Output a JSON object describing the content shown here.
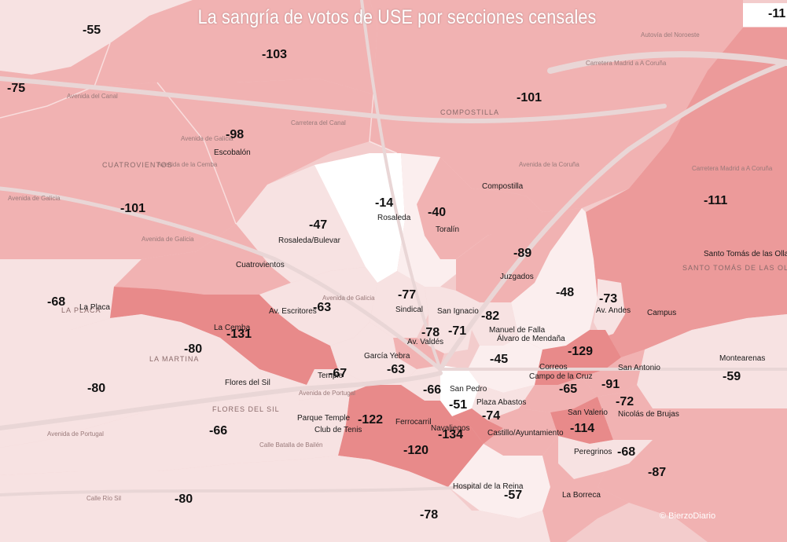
{
  "title": "La sangría de votos de USE por secciones censales",
  "credit": "© BierzoDiario",
  "colors": {
    "base": "#f3cccc",
    "light": "#f7e2e2",
    "pale": "#fbeeee",
    "white": "#ffffff",
    "mid": "#f1b2b2",
    "strong": "#ec9a9a",
    "deep": "#e88a8a",
    "road": "#e9d6d6"
  },
  "values": [
    "-55",
    "-103",
    "-11",
    "-75",
    "-101",
    "-98",
    "-101",
    "-14",
    "-40",
    "-47",
    "-111",
    "-89",
    "-77",
    "-48",
    "-73",
    "-68",
    "-63",
    "-82",
    "-131",
    "-78",
    "-71",
    "-80",
    "-129",
    "-45",
    "-63",
    "-67",
    "-91",
    "-59",
    "-66",
    "-51",
    "-65",
    "-80",
    "-122",
    "-74",
    "-72",
    "-134",
    "-114",
    "-66",
    "-120",
    "-68",
    "-87",
    "-57",
    "-80",
    "-78"
  ],
  "places": [
    "Escobalón",
    "Compostilla",
    "Rosaleda",
    "Toralín",
    "Rosaleda/Bulevar",
    "Santo Tomás de las Ollas",
    "Juzgados",
    "Cuatrovientos",
    "Sindical",
    "San Ignacio",
    "La Placa",
    "Av. Escritores",
    "Manuel de Falla",
    "Álvaro de Mendaña",
    "Av. Andes",
    "Campus",
    "La Cemba",
    "Av. Valdés",
    "García Yebra",
    "Correos",
    "Campo de la Cruz",
    "San Antonio",
    "Montearenas",
    "Flores del Sil",
    "Temple",
    "San Pedro",
    "Plaza Abastos",
    "San Valerio",
    "Nicolás de Brujas",
    "Parque Temple",
    "Ferrocarril",
    "Club de Tenis",
    "Navaliegos",
    "Castillo/Ayuntamiento",
    "Peregrinos",
    "Hospital de la Reina",
    "La Borreca"
  ],
  "roads": [
    "Avenida del Canal",
    "Carretera del Canal",
    "Avenida de Galicia",
    "Avenida de Galicia",
    "Avenida de Galicia",
    "Avenida de Portugal",
    "Avenida de Portugal",
    "Calle Río Sil",
    "Avenida de la Coruña",
    "Avenida de Galicia",
    "Avenida de la Cemba",
    "Carretera Madrid a A Coruña",
    "Autovía del Noroeste",
    "Carretera Madrid a A Coruña",
    "Calle Batalla de Bailén"
  ],
  "districts": [
    "CUATROVIENTOS",
    "COMPOSTILLA",
    "LA MARTINA",
    "FLORES DEL SIL",
    "SANTO TOMÁS DE LAS OLLAS",
    "LA PLACA"
  ]
}
